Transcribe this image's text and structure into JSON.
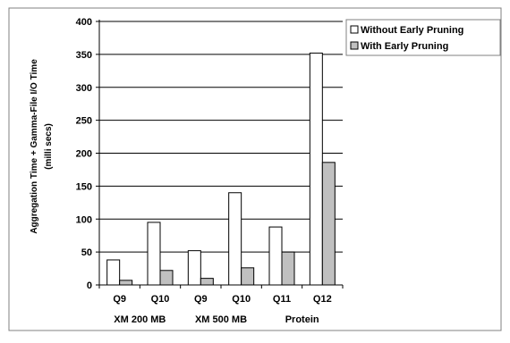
{
  "chart_data": {
    "type": "bar",
    "ylabel_line1": "Aggregation Time + Gamma-File I/O Time",
    "ylabel_line2": "(milli secs)",
    "ylim": [
      0,
      400
    ],
    "yticks": [
      0,
      50,
      100,
      150,
      200,
      250,
      300,
      350,
      400
    ],
    "grid": true,
    "legend_position": "top-right",
    "categories": [
      "Q9",
      "Q10",
      "Q9",
      "Q10",
      "Q11",
      "Q12"
    ],
    "groups": [
      {
        "label": "XM 200 MB",
        "span": [
          0,
          1
        ]
      },
      {
        "label": "XM 500 MB",
        "span": [
          2,
          3
        ]
      },
      {
        "label": "Protein",
        "span": [
          4,
          5
        ]
      }
    ],
    "series": [
      {
        "name": "Without Early Pruning",
        "color": "#ffffff",
        "values": [
          38,
          95,
          52,
          140,
          88,
          352
        ]
      },
      {
        "name": "With Early Pruning",
        "color": "#c0c0c0",
        "values": [
          7,
          22,
          10,
          26,
          50,
          186
        ]
      }
    ]
  }
}
